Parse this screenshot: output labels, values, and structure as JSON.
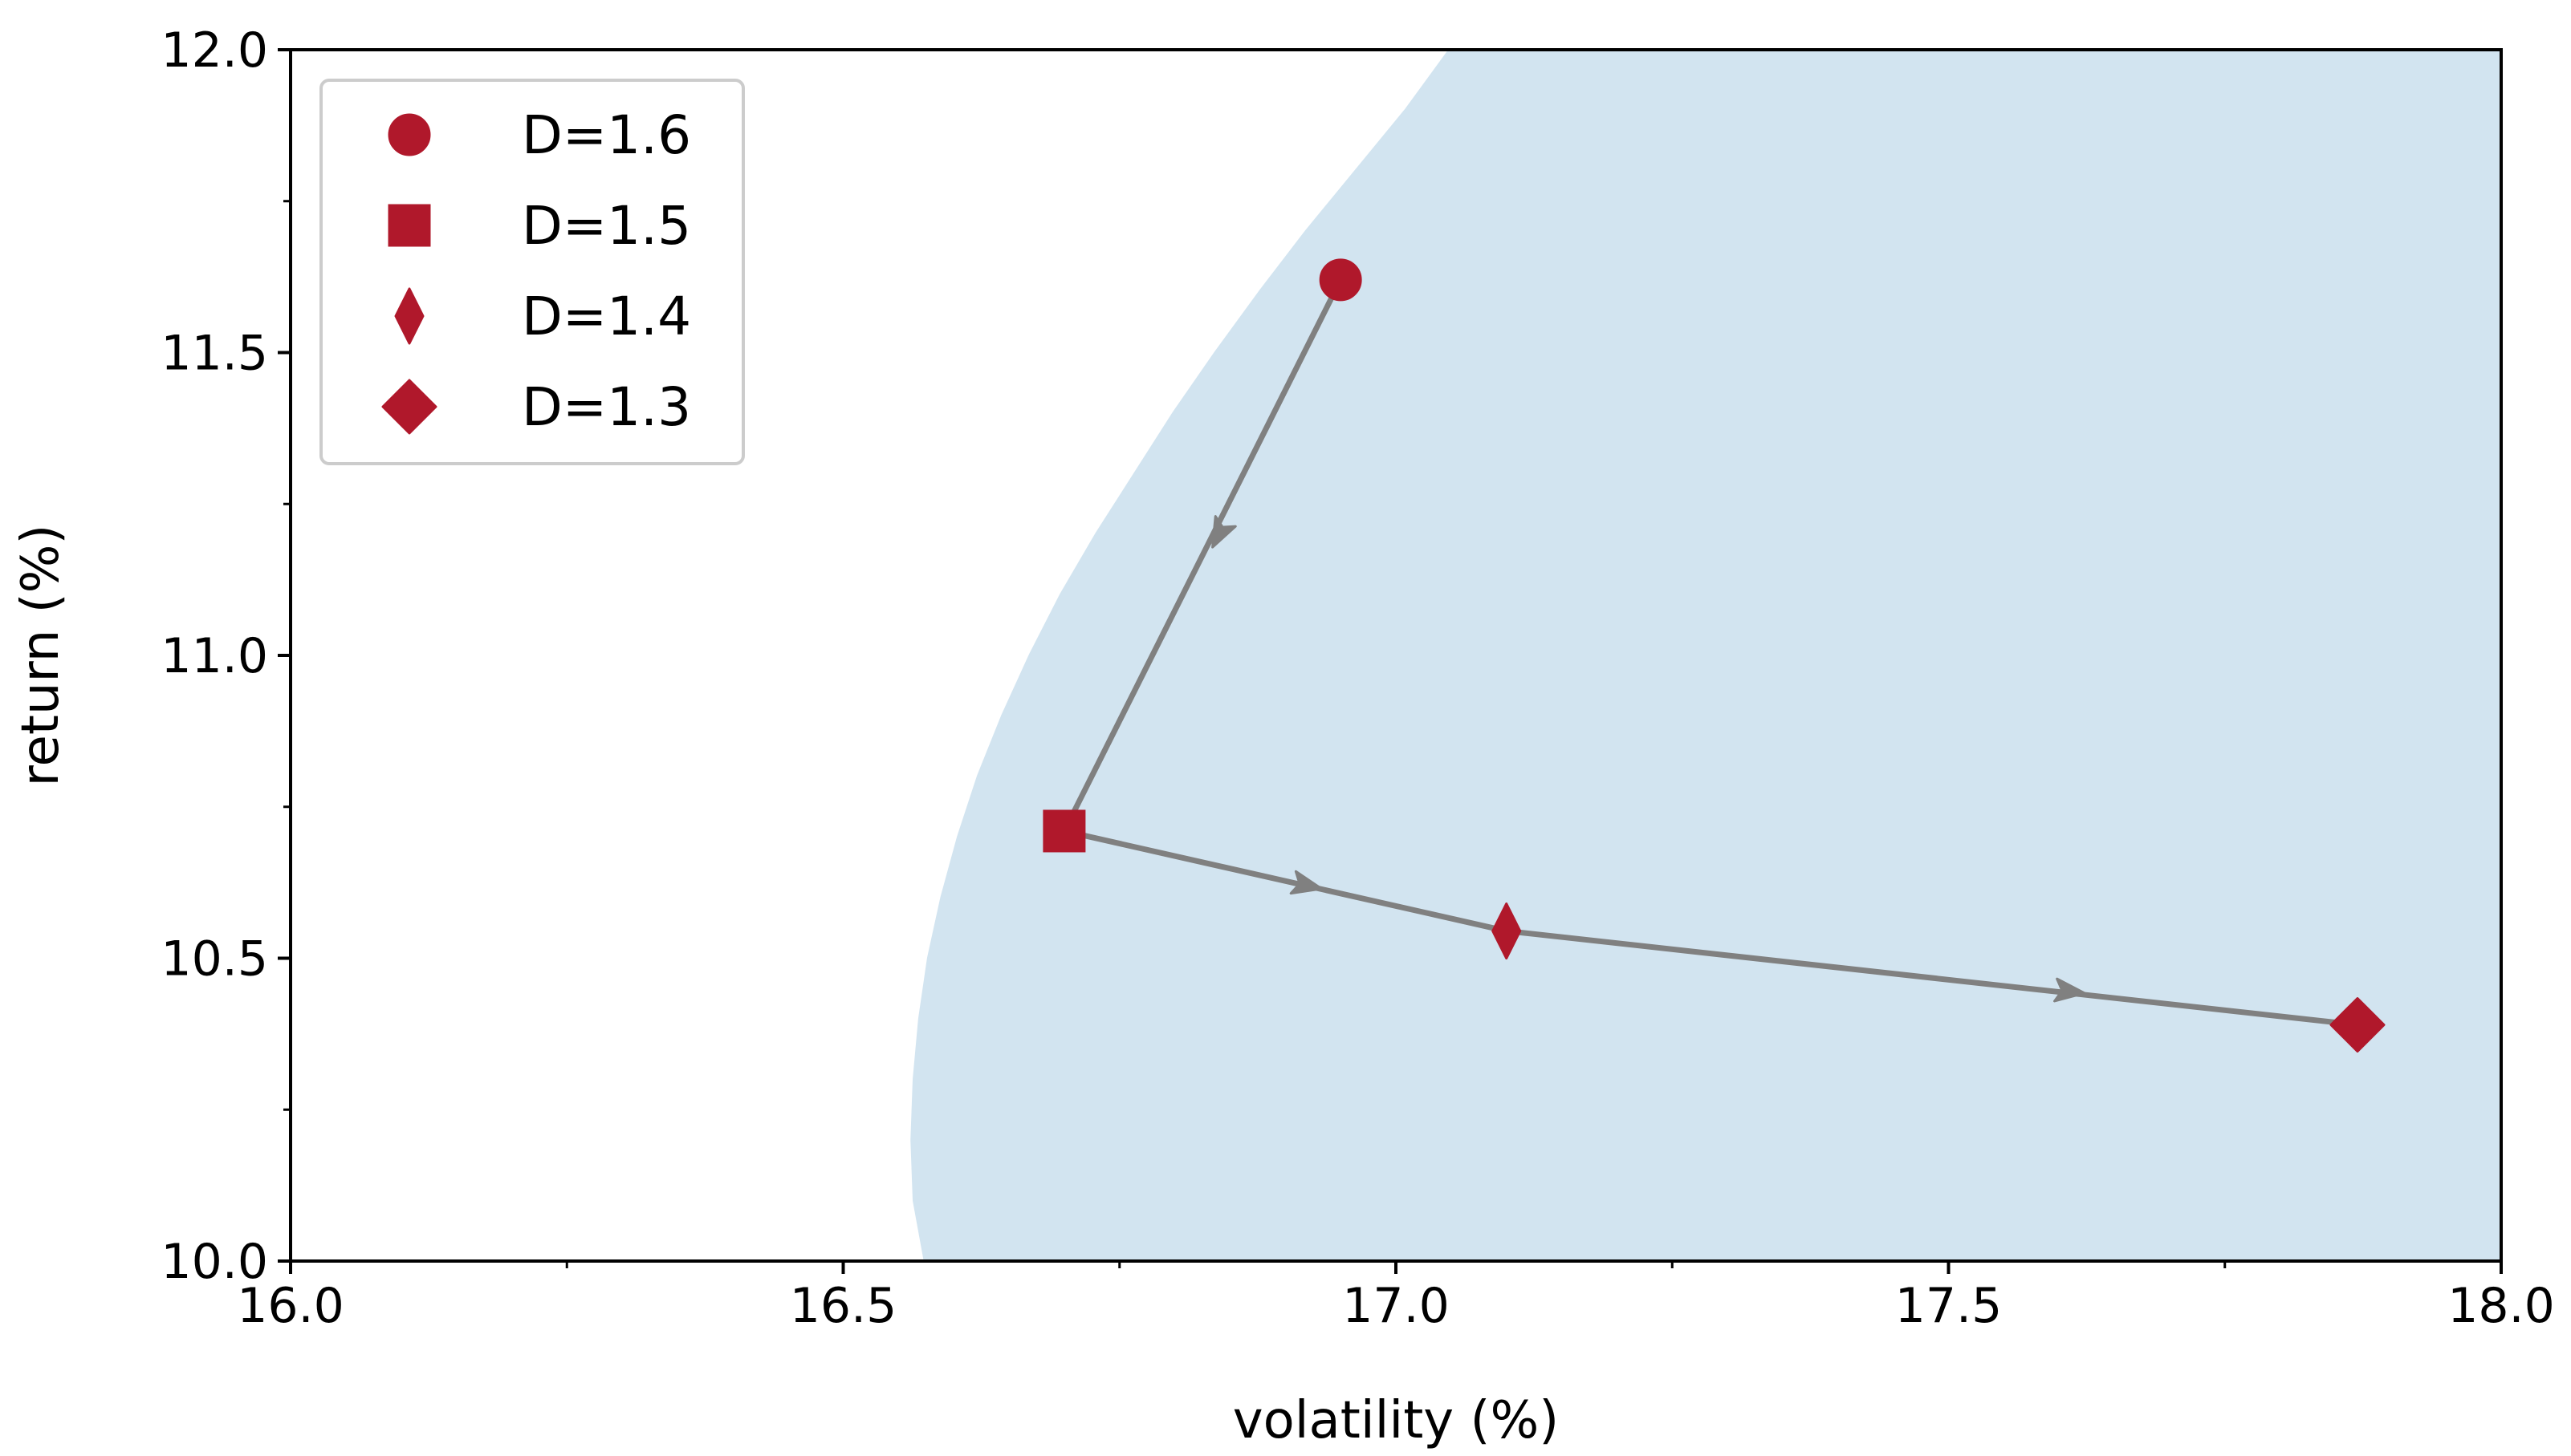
{
  "chart_data": {
    "type": "scatter",
    "title": "",
    "xlabel": "volatility (%)",
    "ylabel": "return (%)",
    "xlim": [
      16.0,
      18.0
    ],
    "ylim": [
      10.0,
      12.0
    ],
    "x_ticks": [
      16.0,
      16.5,
      17.0,
      17.5,
      18.0
    ],
    "x_tick_labels": [
      "16.0",
      "16.5",
      "17.0",
      "17.5",
      "18.0"
    ],
    "x_minor_ticks": [
      16.25,
      16.75,
      17.25,
      17.75
    ],
    "y_ticks": [
      10.0,
      10.5,
      11.0,
      11.5,
      12.0
    ],
    "y_tick_labels": [
      "10.0",
      "10.5",
      "11.0",
      "11.5",
      "12.0"
    ],
    "y_minor_ticks": [
      10.25,
      10.75,
      11.25,
      11.75
    ],
    "grid": false,
    "legend_position": "top-left",
    "feasible_region": {
      "color": "#d2e4f0",
      "boundary": [
        [
          16.575,
          10.0
        ],
        [
          16.565,
          10.1
        ],
        [
          16.563,
          10.2
        ],
        [
          16.565,
          10.3
        ],
        [
          16.57,
          10.4
        ],
        [
          16.578,
          10.5
        ],
        [
          16.59,
          10.6
        ],
        [
          16.605,
          10.7
        ],
        [
          16.623,
          10.8
        ],
        [
          16.645,
          10.9
        ],
        [
          16.67,
          11.0
        ],
        [
          16.698,
          11.1
        ],
        [
          16.73,
          11.2
        ],
        [
          16.765,
          11.3
        ],
        [
          16.8,
          11.4
        ],
        [
          16.838,
          11.5
        ],
        [
          16.878,
          11.6
        ],
        [
          16.92,
          11.7
        ],
        [
          16.965,
          11.8
        ],
        [
          17.01,
          11.9
        ],
        [
          17.05,
          12.0
        ]
      ]
    },
    "series": [
      {
        "name": "D=1.6",
        "marker": "circle",
        "color": "#b0182b",
        "x": 16.95,
        "y": 11.62
      },
      {
        "name": "D=1.5",
        "marker": "square",
        "color": "#b0182b",
        "x": 16.7,
        "y": 10.71
      },
      {
        "name": "D=1.4",
        "marker": "thin_diamond",
        "color": "#b0182b",
        "x": 17.1,
        "y": 10.545
      },
      {
        "name": "D=1.3",
        "marker": "diamond",
        "color": "#b0182b",
        "x": 17.87,
        "y": 10.39
      }
    ],
    "path": {
      "color": "#808080",
      "points": [
        [
          16.95,
          11.62
        ],
        [
          16.7,
          10.71
        ],
        [
          17.1,
          10.545
        ],
        [
          17.87,
          10.39
        ]
      ],
      "arrows": [
        [
          16.84,
          11.2
        ],
        [
          16.92,
          10.62
        ],
        [
          17.61,
          10.445
        ]
      ]
    }
  }
}
